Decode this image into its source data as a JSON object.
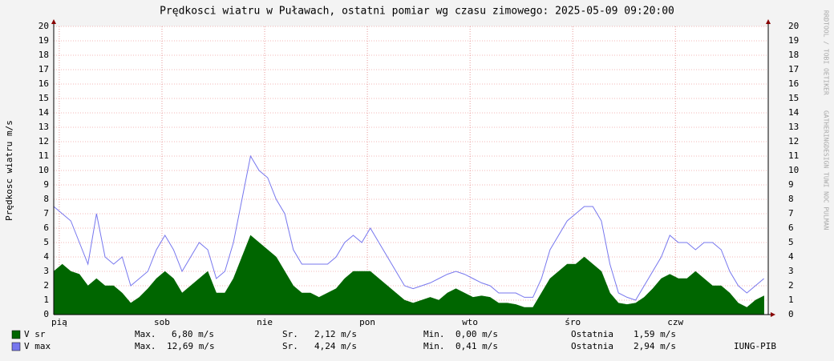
{
  "chart_data": {
    "type": "area",
    "title": "Prędkosci wiatru w Puławach, ostatni pomiar wg czasu zimowego: 2025-05-09 09:20:00",
    "ylabel": "Prędkosc wiatru m/s",
    "x": [
      0,
      2,
      4,
      6,
      8,
      10,
      12,
      14,
      16,
      18,
      20,
      22,
      24,
      26,
      28,
      30,
      32,
      34,
      36,
      38,
      40,
      42,
      44,
      46,
      48,
      50,
      52,
      54,
      56,
      58,
      60,
      62,
      64,
      66,
      68,
      70,
      72,
      74,
      76,
      78,
      80,
      82,
      84,
      86,
      88,
      90,
      92,
      94,
      96,
      98,
      100,
      102,
      104,
      106,
      108,
      110,
      112,
      114,
      116,
      118,
      120,
      122,
      124,
      126,
      128,
      130,
      132,
      134,
      136,
      138,
      140,
      142,
      144,
      146,
      148,
      150,
      152,
      154,
      156,
      158,
      160,
      162,
      164,
      166
    ],
    "xlim": [
      0,
      167
    ],
    "xticks": [
      {
        "value": 1.3,
        "label": "pią"
      },
      {
        "value": 25.3,
        "label": "sob"
      },
      {
        "value": 49.3,
        "label": "nie"
      },
      {
        "value": 73.3,
        "label": "pon"
      },
      {
        "value": 97.3,
        "label": "wto"
      },
      {
        "value": 121.3,
        "label": "śro"
      },
      {
        "value": 145.3,
        "label": "czw"
      }
    ],
    "ylim": [
      0,
      20
    ],
    "yticks": [
      0,
      1,
      2,
      3,
      4,
      5,
      6,
      7,
      8,
      9,
      10,
      11,
      12,
      13,
      14,
      15,
      16,
      17,
      18,
      19,
      20
    ],
    "grid": true,
    "series": [
      {
        "name": "V max",
        "color": "#7777ee",
        "fill": false,
        "values": [
          7.5,
          7,
          6.5,
          5,
          3.5,
          7,
          4,
          3.5,
          4,
          2,
          2.5,
          3,
          4.5,
          5.5,
          4.5,
          3,
          4,
          5,
          4.5,
          2.5,
          3,
          5,
          8,
          11,
          10,
          9.5,
          8,
          7,
          4.5,
          3.5,
          3.5,
          3.5,
          3.5,
          4,
          5,
          5.5,
          5,
          6,
          5,
          4,
          3,
          2,
          1.8,
          2,
          2.2,
          2.5,
          2.8,
          3,
          2.8,
          2.5,
          2.2,
          2,
          1.5,
          1.5,
          1.5,
          1.2,
          1.2,
          2.5,
          4.5,
          5.5,
          6.5,
          7,
          7.5,
          7.5,
          6.5,
          3.5,
          1.5,
          1.2,
          1,
          2,
          3,
          4,
          5.5,
          5,
          5,
          4.5,
          5,
          5,
          4.5,
          3,
          2,
          1.5,
          2,
          2.5
        ],
        "stats": [
          "Max.",
          "12,69 m/s",
          "Sr.",
          "4,24 m/s",
          "Min.",
          "0,41 m/s",
          "Ostatnia",
          "2,94 m/s"
        ]
      },
      {
        "name": "V sr",
        "color": "#006600",
        "fill": true,
        "values": [
          3,
          3.5,
          3,
          2.8,
          2,
          2.5,
          2,
          2,
          1.5,
          0.8,
          1.2,
          1.8,
          2.5,
          3,
          2.5,
          1.5,
          2,
          2.5,
          3,
          1.5,
          1.5,
          2.5,
          4,
          5.5,
          5,
          4.5,
          4,
          3,
          2,
          1.5,
          1.5,
          1.2,
          1.5,
          1.8,
          2.5,
          3,
          3,
          3,
          2.5,
          2,
          1.5,
          1,
          0.8,
          1,
          1.2,
          1,
          1.5,
          1.8,
          1.5,
          1.2,
          1.3,
          1.2,
          0.8,
          0.8,
          0.7,
          0.5,
          0.5,
          1.5,
          2.5,
          3,
          3.5,
          3.5,
          4,
          3.5,
          3,
          1.5,
          0.8,
          0.7,
          0.8,
          1.2,
          1.8,
          2.5,
          2.8,
          2.5,
          2.5,
          3,
          2.5,
          2,
          2,
          1.5,
          0.8,
          0.5,
          1,
          1.3
        ],
        "stats": [
          "Max.",
          "6,80 m/s",
          "Sr.",
          "2,12 m/s",
          "Min.",
          "0,00 m/s",
          "Ostatnia",
          "1,59 m/s"
        ]
      }
    ],
    "legend_order": [
      1,
      0
    ],
    "footer": "IUNG-PIB",
    "watermark": "RRDTOOL / TOBI OETIKER    GATHERINGDESIGN TUWI NOC PULMAN"
  }
}
